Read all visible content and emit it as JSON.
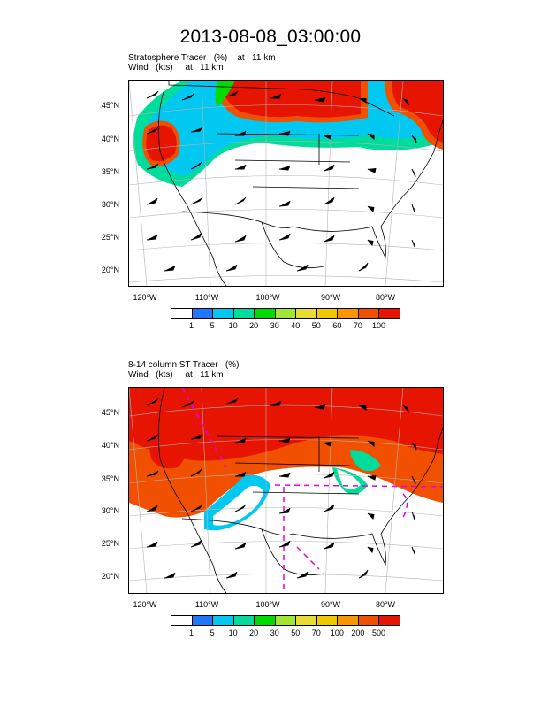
{
  "title": "2013-08-08_03:00:00",
  "panels": [
    {
      "label_line1": "Stratosphere Tracer   (%)    at   11 km",
      "label_line2": "Wind   (kts)     at   11 km",
      "y_ticks": [
        "45°N",
        "40°N",
        "35°N",
        "30°N",
        "25°N",
        "20°N"
      ],
      "x_ticks": [
        "120°W",
        "110°W",
        "100°W",
        "90°W",
        "80°W"
      ],
      "colorbar": {
        "colors": [
          "#ffffff",
          "#1e78ff",
          "#00c8f0",
          "#00dc9c",
          "#00dc00",
          "#a0e632",
          "#e6dc32",
          "#f0c800",
          "#fa9600",
          "#f05000",
          "#e61400"
        ],
        "labels": [
          "1",
          "5",
          "10",
          "20",
          "30",
          "40",
          "50",
          "60",
          "70",
          "100"
        ]
      }
    },
    {
      "label_line1": "8-14 column ST Tracer   (%)",
      "label_line2": "Wind   (kts)     at   11 km",
      "y_ticks": [
        "45°N",
        "40°N",
        "35°N",
        "30°N",
        "25°N",
        "20°N"
      ],
      "x_ticks": [
        "120°W",
        "110°W",
        "100°W",
        "90°W",
        "80°W"
      ],
      "colorbar": {
        "colors": [
          "#ffffff",
          "#1e78ff",
          "#00c8f0",
          "#00dc9c",
          "#00dc00",
          "#a0e632",
          "#e6dc32",
          "#f0c800",
          "#fa9600",
          "#f05000",
          "#e61400"
        ],
        "labels": [
          "1",
          "5",
          "10",
          "20",
          "30",
          "50",
          "70",
          "100",
          "200",
          "500"
        ]
      }
    }
  ]
}
